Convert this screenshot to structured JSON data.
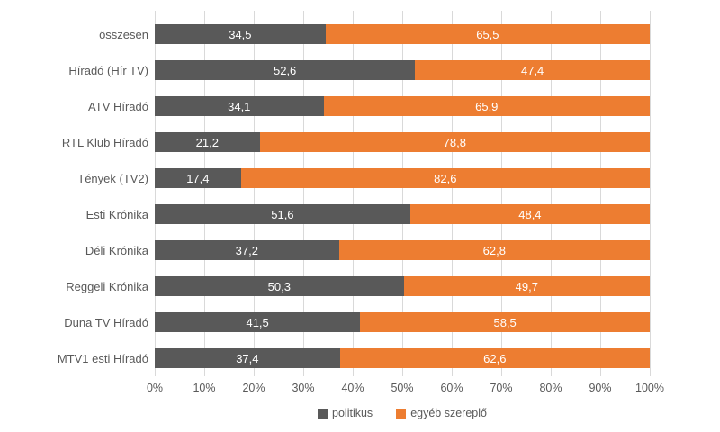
{
  "chart_data": {
    "type": "bar",
    "subtype": "horizontal-stacked-100",
    "title": "",
    "xlabel": "",
    "ylabel": "",
    "xlim": [
      0,
      100
    ],
    "grid": true,
    "gridline_color": "#d9d9d9",
    "axis_text_color": "#595959",
    "value_label_color": "#ffffff",
    "background_color": "#ffffff",
    "legend_position": "bottom",
    "categories": [
      "összesen",
      "Híradó (Hír TV)",
      "ATV Híradó",
      "RTL Klub Híradó",
      "Tények (TV2)",
      "Esti Krónika",
      "Déli Krónika",
      "Reggeli Krónika",
      "Duna TV Híradó",
      "MTV1 esti Híradó"
    ],
    "series": [
      {
        "name": "politikus",
        "color": "#595959",
        "values": [
          34.5,
          52.6,
          34.1,
          21.2,
          17.4,
          51.6,
          37.2,
          50.3,
          41.5,
          37.4
        ],
        "labels": [
          "34,5",
          "52,6",
          "34,1",
          "21,2",
          "17,4",
          "51,6",
          "37,2",
          "50,3",
          "41,5",
          "37,4"
        ]
      },
      {
        "name": "egyéb szereplő",
        "color": "#ed7d31",
        "values": [
          65.5,
          47.4,
          65.9,
          78.8,
          82.6,
          48.4,
          62.8,
          49.7,
          58.5,
          62.6
        ],
        "labels": [
          "65,5",
          "47,4",
          "65,9",
          "78,8",
          "82,6",
          "48,4",
          "62,8",
          "49,7",
          "58,5",
          "62,6"
        ]
      }
    ],
    "x_ticks": [
      "0%",
      "10%",
      "20%",
      "30%",
      "40%",
      "50%",
      "60%",
      "70%",
      "80%",
      "90%",
      "100%"
    ]
  }
}
